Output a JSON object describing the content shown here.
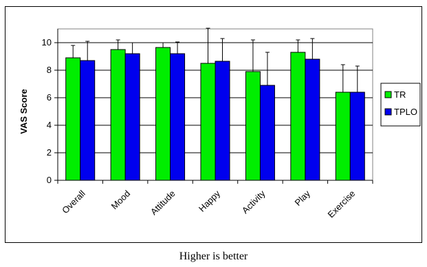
{
  "caption": "Higher is better",
  "chart_data": {
    "type": "bar",
    "categories": [
      "Overall",
      "Mood",
      "Attitude",
      "Happy",
      "Activity",
      "Play",
      "Exercise"
    ],
    "series": [
      {
        "name": "TR",
        "color": "#00ee00",
        "values": [
          8.9,
          9.5,
          9.65,
          8.5,
          7.9,
          9.3,
          6.4
        ],
        "errors": [
          0.9,
          0.7,
          0.35,
          2.55,
          2.3,
          0.9,
          2.0
        ]
      },
      {
        "name": "TPLO",
        "color": "#0000ee",
        "values": [
          8.7,
          9.2,
          9.2,
          8.65,
          6.9,
          8.8,
          6.4
        ],
        "errors": [
          1.4,
          0.8,
          0.85,
          1.65,
          2.4,
          1.5,
          1.9
        ]
      }
    ],
    "ylabel": "VAS Score",
    "xlabel": "",
    "ylim": [
      0,
      11
    ],
    "yticks": [
      0,
      2,
      4,
      6,
      8,
      10
    ],
    "grid": true,
    "legend": "right",
    "error_bars": "upper"
  }
}
